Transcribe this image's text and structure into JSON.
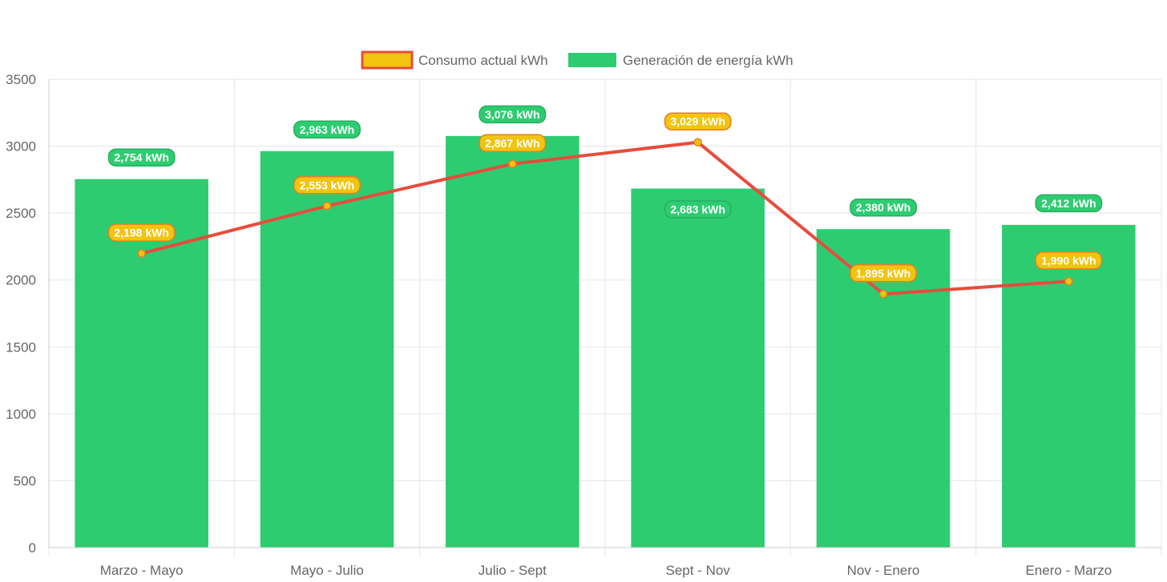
{
  "chart_data": {
    "type": "bar",
    "categories": [
      "Marzo - Mayo",
      "Mayo - Julio",
      "Julio - Sept",
      "Sept - Nov",
      "Nov - Enero",
      "Enero - Marzo"
    ],
    "series": [
      {
        "name": "Consumo actual kWh",
        "type": "line",
        "values": [
          2198,
          2553,
          2867,
          3029,
          1895,
          1990
        ],
        "labels": [
          "2,198 kWh",
          "2,553 kWh",
          "2,867 kWh",
          "3,029 kWh",
          "1,895 kWh",
          "1,990 kWh"
        ],
        "color": "#e74c3c",
        "fill_color": "#f1c40f"
      },
      {
        "name": "Generación de energía kWh",
        "type": "bar",
        "values": [
          2754,
          2963,
          3076,
          2683,
          2380,
          2412
        ],
        "labels": [
          "2,754 kWh",
          "2,963 kWh",
          "3,076 kWh",
          "2,683 kWh",
          "2,380 kWh",
          "2,412 kWh"
        ],
        "color": "#2ecc71"
      }
    ],
    "yticks": [
      "0",
      "500",
      "1000",
      "1500",
      "2000",
      "2500",
      "3000",
      "3500"
    ],
    "ylim": [
      0,
      3500
    ],
    "grid": true,
    "legend_position": "top"
  }
}
